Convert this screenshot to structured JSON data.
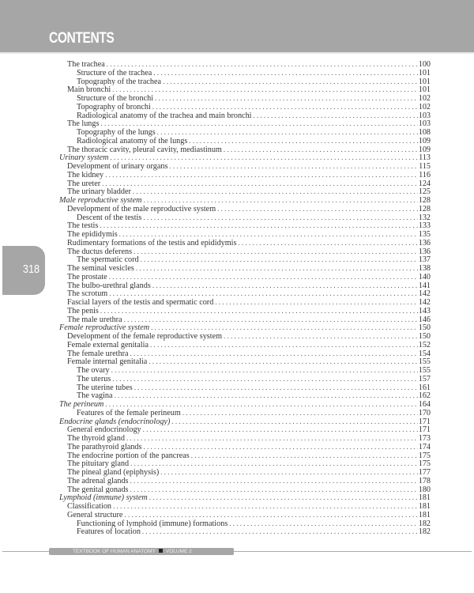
{
  "header": {
    "title": "CONTENTS"
  },
  "page_number": "318",
  "footer": {
    "book": "TEXTBOOK OF HUMAN ANATOMY",
    "volume": "VOLUME 2"
  },
  "colors": {
    "band": "#a6a6a6",
    "text": "#333333"
  },
  "toc": [
    {
      "title": "The trachea",
      "page": "100",
      "level": 0
    },
    {
      "title": "Structure of the trachea",
      "page": "101",
      "level": 1
    },
    {
      "title": "Topography of the trachea",
      "page": "101",
      "level": 1
    },
    {
      "title": "Main bronchi",
      "page": "101",
      "level": 0
    },
    {
      "title": "Structure of the bronchi",
      "page": "102",
      "level": 1
    },
    {
      "title": "Topography of bronchi",
      "page": "102",
      "level": 1
    },
    {
      "title": "Radiological anatomy of the trachea and main bronchi",
      "page": "103",
      "level": 1
    },
    {
      "title": "The lungs",
      "page": "103",
      "level": 0
    },
    {
      "title": "Topography of the lungs",
      "page": "108",
      "level": 1
    },
    {
      "title": "Radiological anatomy of the lungs",
      "page": "109",
      "level": 1
    },
    {
      "title": "The thoracic cavity, pleural cavity, mediastinum",
      "page": "109",
      "level": 0
    },
    {
      "title": "Urinary system",
      "page": "113",
      "level": -1
    },
    {
      "title": "Development of urinary organs",
      "page": "115",
      "level": 0
    },
    {
      "title": "The kidney",
      "page": "116",
      "level": 0
    },
    {
      "title": "The ureter",
      "page": "124",
      "level": 0
    },
    {
      "title": "The urinary bladder",
      "page": "125",
      "level": 0
    },
    {
      "title": "Male reproductive system",
      "page": "128",
      "level": -1
    },
    {
      "title": "Development of the male reproductive system",
      "page": "128",
      "level": 0
    },
    {
      "title": "Descent of the testis",
      "page": "132",
      "level": 1
    },
    {
      "title": "The testis",
      "page": "133",
      "level": 0
    },
    {
      "title": "The epididymis",
      "page": "135",
      "level": 0
    },
    {
      "title": "Rudimentary formations of the testis and epididymis",
      "page": "136",
      "level": 0
    },
    {
      "title": "The ductus deferens",
      "page": "136",
      "level": 0
    },
    {
      "title": "The spermatic cord",
      "page": "137",
      "level": 1
    },
    {
      "title": "The seminal vesicles",
      "page": "138",
      "level": 0
    },
    {
      "title": "The prostate",
      "page": "140",
      "level": 0
    },
    {
      "title": "The bulbo-urethral glands",
      "page": "141",
      "level": 0
    },
    {
      "title": "The scrotum",
      "page": "142",
      "level": 0
    },
    {
      "title": "Fascial layers of the testis and spermatic cord",
      "page": "142",
      "level": 0
    },
    {
      "title": "The penis",
      "page": "143",
      "level": 0
    },
    {
      "title": "The male urethra",
      "page": "146",
      "level": 0
    },
    {
      "title": "Female reproductive system",
      "page": "150",
      "level": -1
    },
    {
      "title": "Development of the female reproductive system",
      "page": "150",
      "level": 0
    },
    {
      "title": "Female external genitalia",
      "page": "152",
      "level": 0
    },
    {
      "title": "The female urethra",
      "page": "154",
      "level": 0
    },
    {
      "title": "Female internal genitalia",
      "page": "155",
      "level": 0
    },
    {
      "title": "The ovary",
      "page": "155",
      "level": 1
    },
    {
      "title": "The uterus",
      "page": "157",
      "level": 1
    },
    {
      "title": "The uterine tubes",
      "page": "161",
      "level": 1
    },
    {
      "title": "The vagina",
      "page": "162",
      "level": 1
    },
    {
      "title": "The perineum",
      "page": "164",
      "level": -1
    },
    {
      "title": "Features of the female perineum",
      "page": "170",
      "level": 1
    },
    {
      "title": "Endocrine glands (endocrinology)",
      "page": "171",
      "level": -1
    },
    {
      "title": "General endocrinology",
      "page": "171",
      "level": 0
    },
    {
      "title": "The thyroid gland",
      "page": "173",
      "level": 0
    },
    {
      "title": "The parathyroid glands",
      "page": "174",
      "level": 0
    },
    {
      "title": "The endocrine portion of the pancreas",
      "page": "175",
      "level": 0
    },
    {
      "title": "The pituitary gland",
      "page": "175",
      "level": 0
    },
    {
      "title": "The pineal gland (epiphysis)",
      "page": "177",
      "level": 0
    },
    {
      "title": "The adrenal glands",
      "page": "178",
      "level": 0
    },
    {
      "title": "The genital gonads",
      "page": "180",
      "level": 0
    },
    {
      "title": "Lymphoid (immune) system",
      "page": "181",
      "level": -1
    },
    {
      "title": "Classification",
      "page": "181",
      "level": 0
    },
    {
      "title": "General structure",
      "page": "181",
      "level": 0
    },
    {
      "title": "Functioning of lymphoid (immune) formations",
      "page": "182",
      "level": 1
    },
    {
      "title": "Features of location",
      "page": "182",
      "level": 1
    }
  ]
}
